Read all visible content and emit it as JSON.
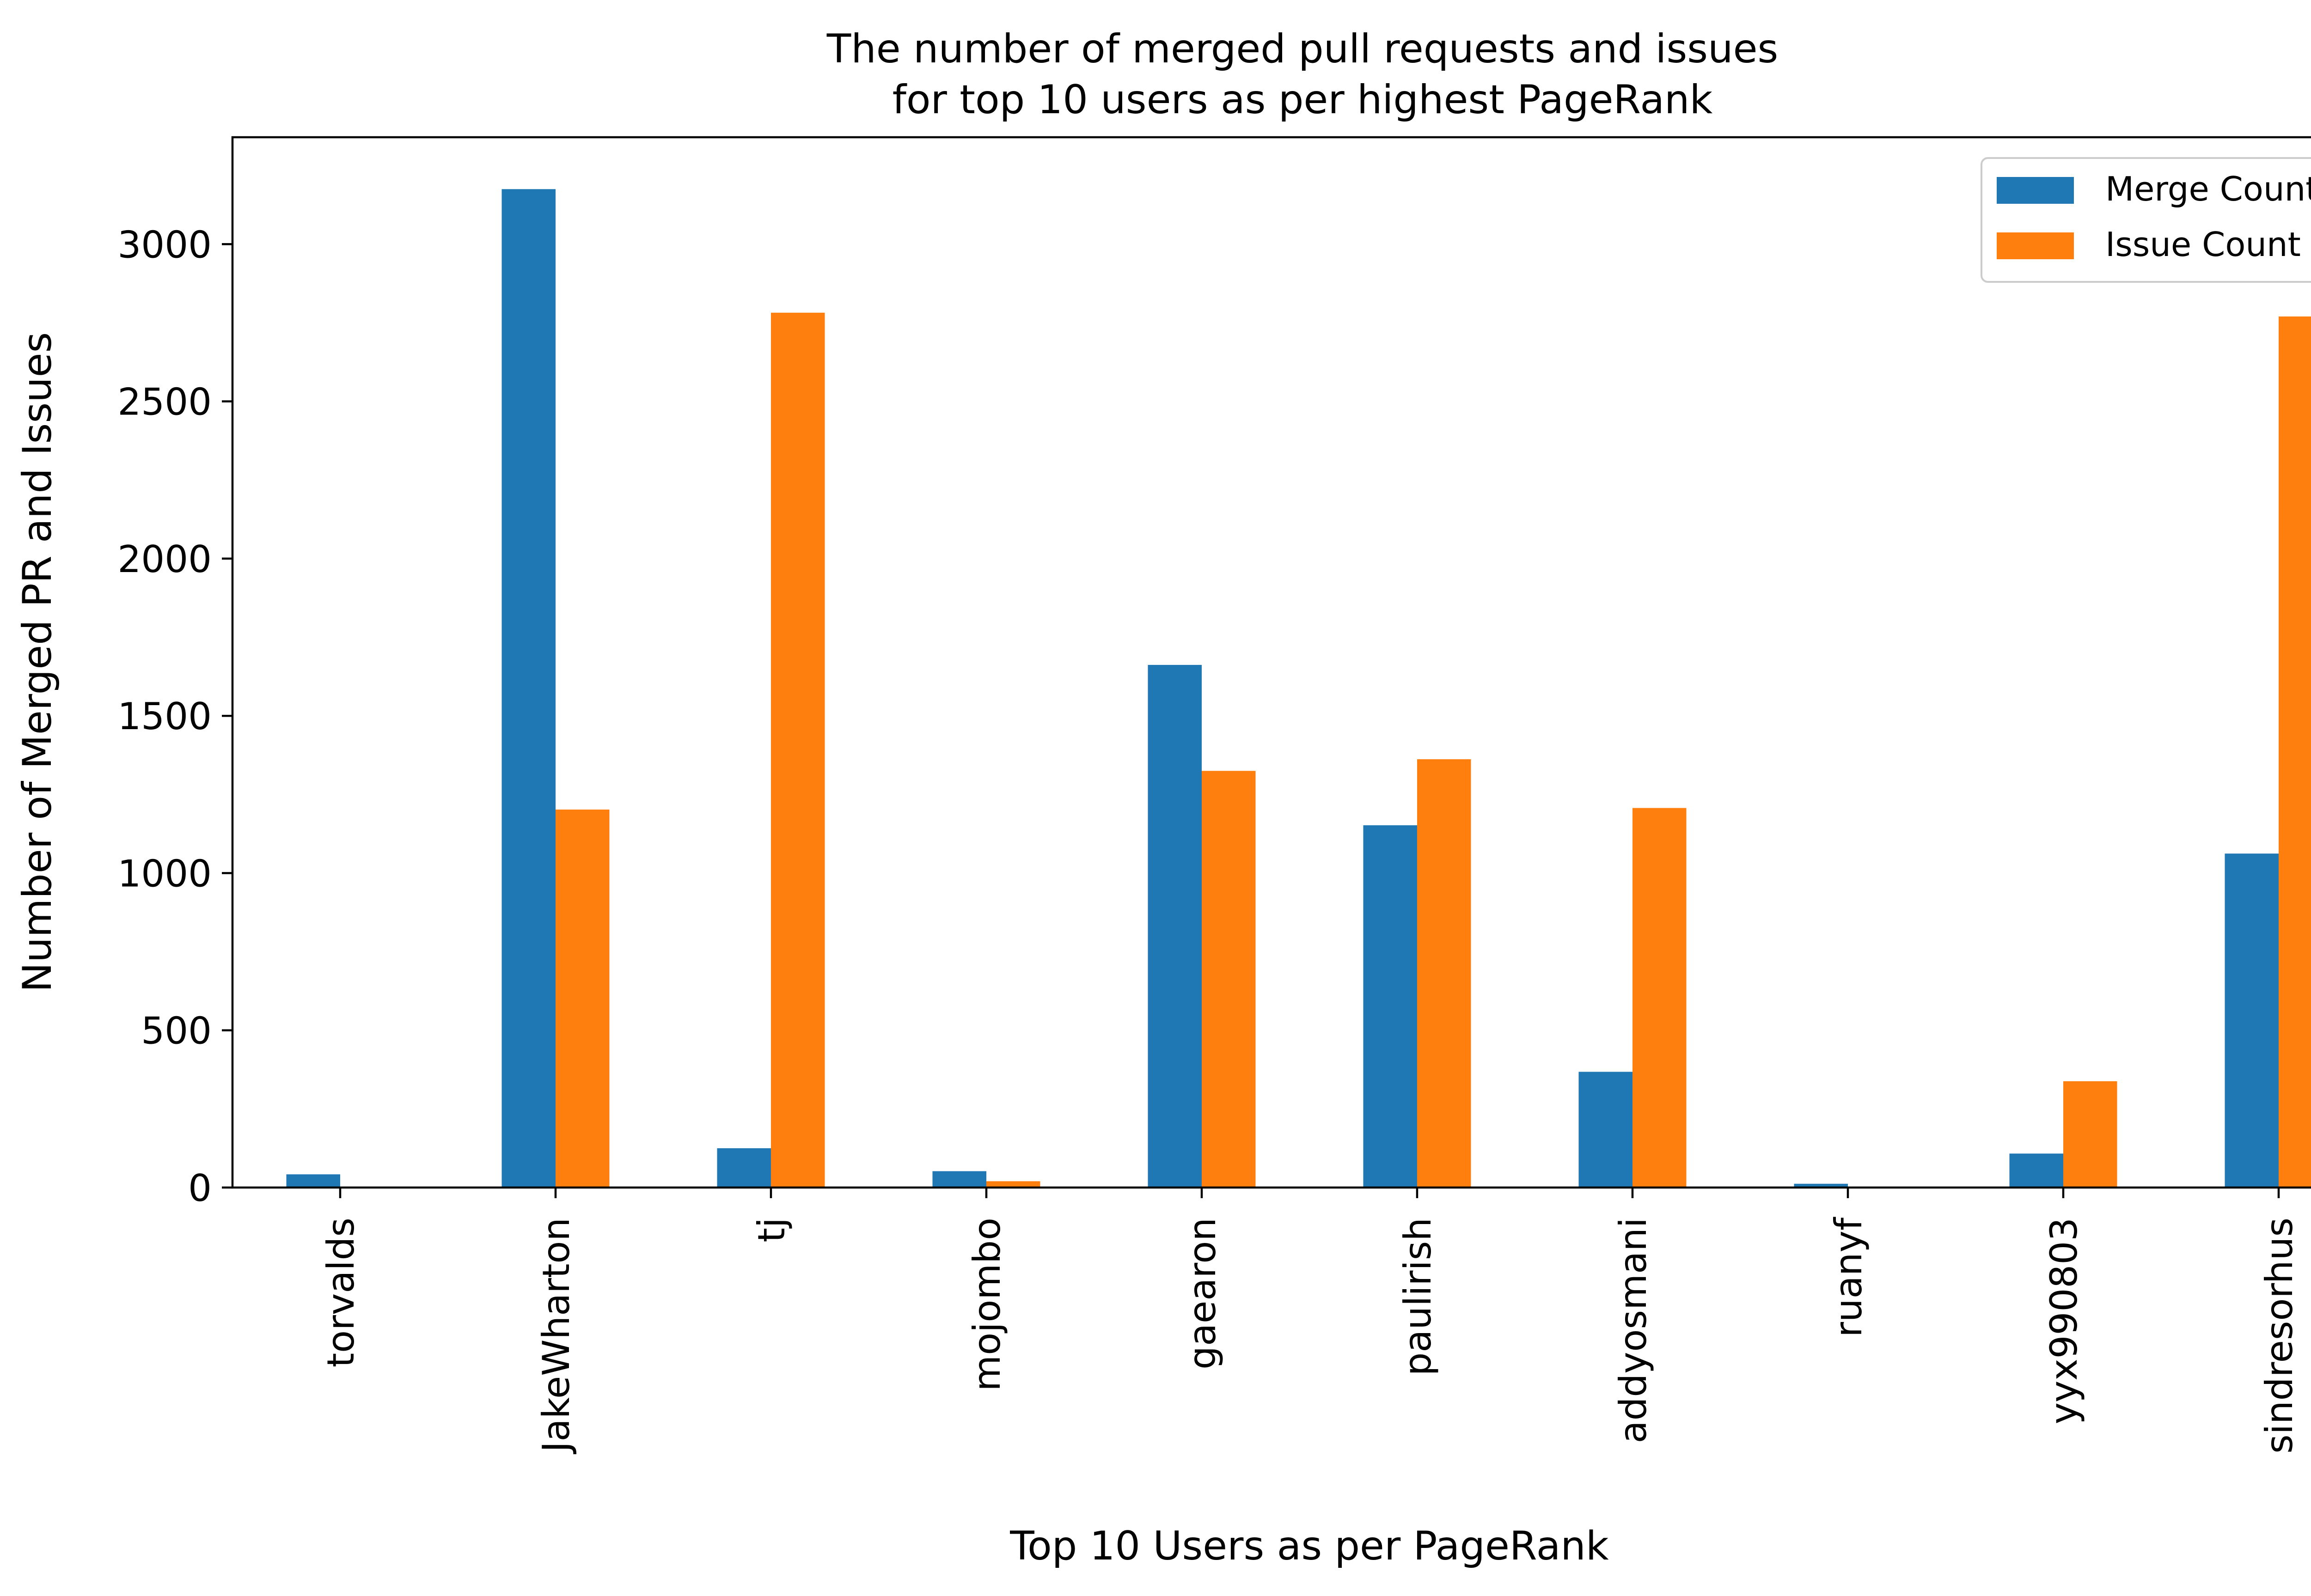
{
  "chart_data": {
    "type": "bar",
    "title_lines": [
      "The number of merged pull requests and issues",
      "for top 10 users as per highest PageRank"
    ],
    "xlabel": "Top 10 Users as per PageRank",
    "ylabel": "Number of Merged PR and Issues",
    "categories": [
      "torvalds",
      "JakeWharton",
      "tj",
      "mojombo",
      "gaearon",
      "paulirish",
      "addyosmani",
      "ruanyf",
      "yyx990803",
      "sindresorhus"
    ],
    "series": [
      {
        "name": "Merge Count",
        "color": "#1f77b4",
        "values": [
          42,
          3175,
          125,
          52,
          1662,
          1152,
          368,
          12,
          108,
          1062
        ]
      },
      {
        "name": "Issue Count",
        "color": "#ff7f0e",
        "values": [
          0,
          1202,
          2782,
          20,
          1325,
          1362,
          1207,
          2,
          338,
          2770
        ]
      }
    ],
    "yticks": [
      0,
      500,
      1000,
      1500,
      2000,
      2500,
      3000
    ],
    "ylim": [
      0,
      3340
    ],
    "grid": false,
    "legend_position": "upper right"
  }
}
